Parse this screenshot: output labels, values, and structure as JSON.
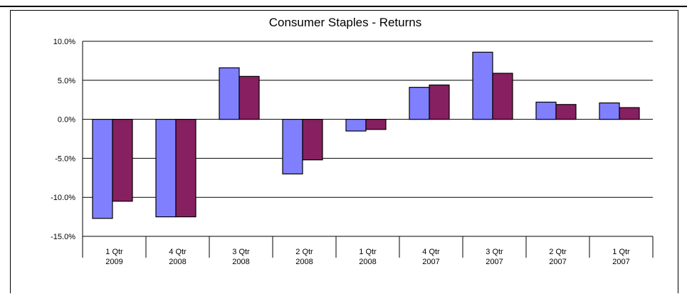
{
  "chart_data": {
    "type": "bar",
    "title": "Consumer Staples  -  Returns",
    "categories": [
      [
        "1 Qtr",
        "2009"
      ],
      [
        "4 Qtr",
        "2008"
      ],
      [
        "3 Qtr",
        "2008"
      ],
      [
        "2 Qtr",
        "2008"
      ],
      [
        "1 Qtr",
        "2008"
      ],
      [
        "4 Qtr",
        "2007"
      ],
      [
        "3 Qtr",
        "2007"
      ],
      [
        "2 Qtr",
        "2007"
      ],
      [
        "1 Qtr",
        "2007"
      ]
    ],
    "series": [
      {
        "values": [
          -12.7,
          -12.5,
          6.6,
          -7.0,
          -1.5,
          4.1,
          8.6,
          2.2,
          2.1
        ],
        "color": "#8080ff"
      },
      {
        "values": [
          -10.5,
          -12.5,
          5.5,
          -5.2,
          -1.3,
          4.4,
          5.9,
          1.9,
          1.5
        ],
        "color": "#862060"
      }
    ],
    "yticks": [
      "10.0%",
      "5.0%",
      "0.0%",
      "-5.0%",
      "-10.0%",
      "-15.0%"
    ],
    "ylim": [
      -15,
      10
    ],
    "grid": true
  }
}
